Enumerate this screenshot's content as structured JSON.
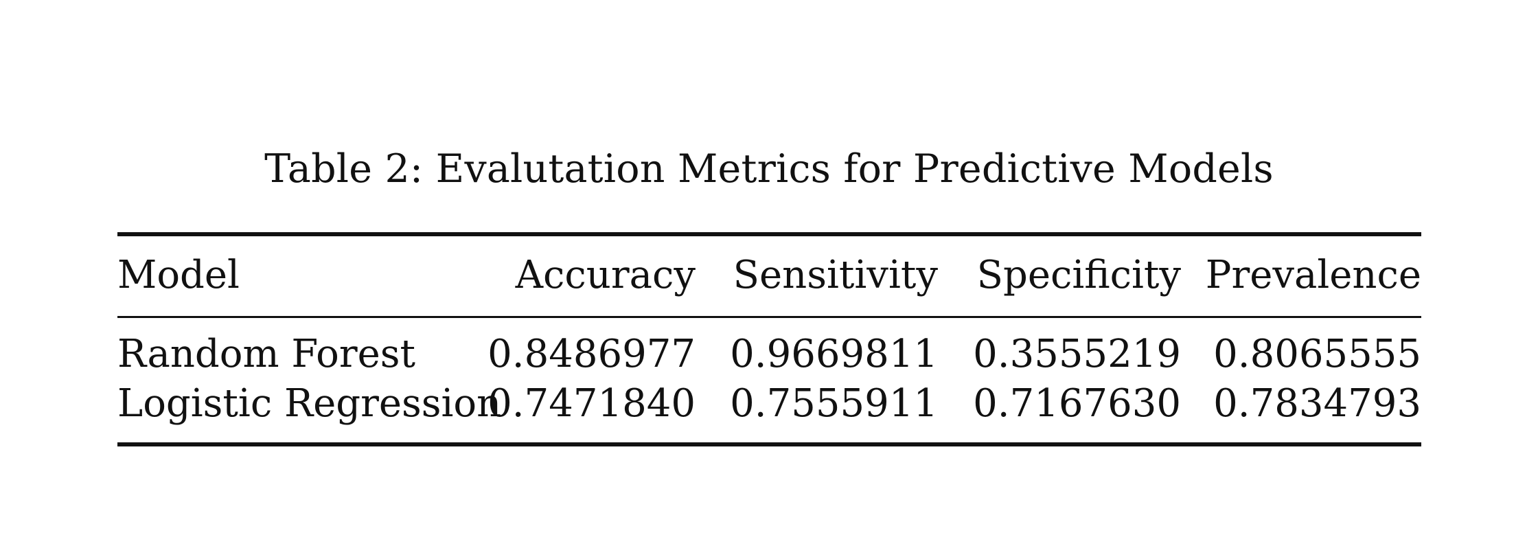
{
  "caption": "Table 2: Evalutation Metrics for Predictive Models",
  "table": {
    "headers": [
      "Model",
      "Accuracy",
      "Sensitivity",
      "Specificity",
      "Prevalence"
    ],
    "rows": [
      [
        "Random Forest",
        "0.8486977",
        "0.9669811",
        "0.3555219",
        "0.8065555"
      ],
      [
        "Logistic Regression",
        "0.7471840",
        "0.7555911",
        "0.7167630",
        "0.7834793"
      ]
    ]
  }
}
